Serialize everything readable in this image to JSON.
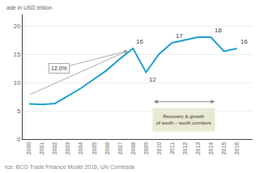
{
  "chart_data": {
    "type": "line",
    "x": [
      2000,
      2001,
      2002,
      2003,
      2004,
      2005,
      2006,
      2007,
      2008,
      2009,
      2010,
      2011,
      2012,
      2013,
      2014,
      2015,
      2016
    ],
    "values": [
      6.2,
      6.1,
      6.3,
      7.6,
      9.0,
      10.6,
      12.2,
      14.2,
      16.0,
      11.8,
      15.0,
      17.0,
      17.5,
      18.0,
      18.0,
      15.5,
      16.0
    ],
    "color": "#1fa0d0",
    "ylabel": "ade in USD trillion",
    "source": "rce: BCG Trade Finance Model 2016, UN Comtrade",
    "xlim": [
      1999.5,
      2017.2
    ],
    "xticks": [
      2000,
      2001,
      2002,
      2003,
      2004,
      2005,
      2006,
      2007,
      2008,
      2009,
      2010,
      2011,
      2012,
      2013,
      2014,
      2015,
      2016
    ],
    "ylim": [
      0,
      22
    ],
    "yticks": [
      0,
      5,
      10,
      15,
      20
    ],
    "grid": true,
    "annotations": [
      {
        "text": "16",
        "x": 2008,
        "y": 16.0
      },
      {
        "text": "12",
        "x": 2009,
        "y": 11.8
      },
      {
        "text": "17",
        "x": 2011,
        "y": 17.0
      },
      {
        "text": "18",
        "x": 2014,
        "y": 18.0
      },
      {
        "text": "16",
        "x": 2016,
        "y": 16.0
      }
    ],
    "trend": {
      "x": [
        2000,
        2007.6
      ],
      "y": [
        7.8,
        15.6
      ],
      "color": "#aaaaaa",
      "label": "12.0%"
    },
    "span": {
      "x": [
        2009.5,
        2014.3
      ],
      "color": "#e8e8d0",
      "label": "Recovery & growth\nof south – south corridors"
    }
  }
}
